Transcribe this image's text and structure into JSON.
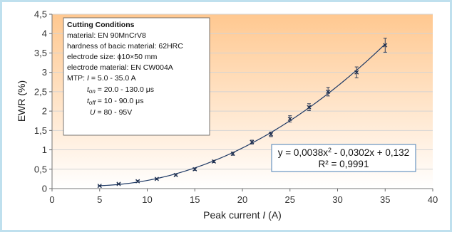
{
  "chart_data": {
    "type": "scatter",
    "title": "",
    "xlabel_main": "Peak current ",
    "xlabel_var": "I",
    "xlabel_unit": " (A)",
    "ylabel": "EWR (%)",
    "xlim": [
      0,
      40
    ],
    "ylim": [
      0,
      4.5
    ],
    "x_ticks": [
      0,
      5,
      10,
      15,
      20,
      25,
      30,
      35,
      40
    ],
    "x_tick_labels": [
      "0",
      "5",
      "10",
      "15",
      "20",
      "25",
      "30",
      "35",
      "40"
    ],
    "y_ticks": [
      0,
      0.5,
      1,
      1.5,
      2,
      2.5,
      3,
      3.5,
      4,
      4.5
    ],
    "y_tick_labels": [
      "0",
      "0,5",
      "1",
      "1,5",
      "2",
      "2,5",
      "3",
      "3,5",
      "4",
      "4,5"
    ],
    "grid": "horizontal",
    "series": [
      {
        "x": [
          5,
          7,
          9,
          11,
          13,
          15,
          17,
          19,
          21,
          23,
          25,
          27,
          29,
          32,
          35
        ],
        "y": [
          0.07,
          0.12,
          0.19,
          0.25,
          0.35,
          0.5,
          0.7,
          0.9,
          1.2,
          1.4,
          1.8,
          2.1,
          2.5,
          3.0,
          3.7
        ],
        "error": [
          0.01,
          0.01,
          0.02,
          0.02,
          0.02,
          0.03,
          0.03,
          0.04,
          0.05,
          0.06,
          0.08,
          0.09,
          0.11,
          0.14,
          0.18
        ]
      }
    ],
    "trendline": {
      "type": "polynomial",
      "coefficients": [
        0.0038,
        -0.0302,
        0.132
      ],
      "x_range": [
        5,
        35
      ],
      "equation_base": "y = 0,0038x",
      "equation_exp": "2",
      "equation_rest": " - 0,0302x + 0,132",
      "r_squared_label": "R² = 0,9991"
    },
    "conditions_box": {
      "title": "Cutting Conditions",
      "material": "material: EN 90MnCrV8",
      "hardness": "hardness of bacic material: 62HRC",
      "electrode_size": "electrode size: ϕ10×50 mm",
      "electrode_material": "electrode material: EN CW004A",
      "mtp_prefix": "MTP: ",
      "mtp_var": "I",
      "mtp_rest": " = 5.0 - 35.0 A",
      "ton_var": "t",
      "ton_sub": "on",
      "ton_rest": " = 20.0  - 130.0 μs",
      "toff_var": "t",
      "toff_sub": "off",
      "toff_rest": " = 10  - 90.0 μs",
      "u_var": "U",
      "u_rest": " = 80 - 95V"
    },
    "colors": {
      "border": "#bfe0ee",
      "plot_top": "#ffc890",
      "plot_bottom": "#ffffff",
      "data": "#1f3050",
      "trendline": "#1f3a66",
      "grid": "#d4d4d4",
      "equation_border": "#4a7fb5"
    }
  }
}
